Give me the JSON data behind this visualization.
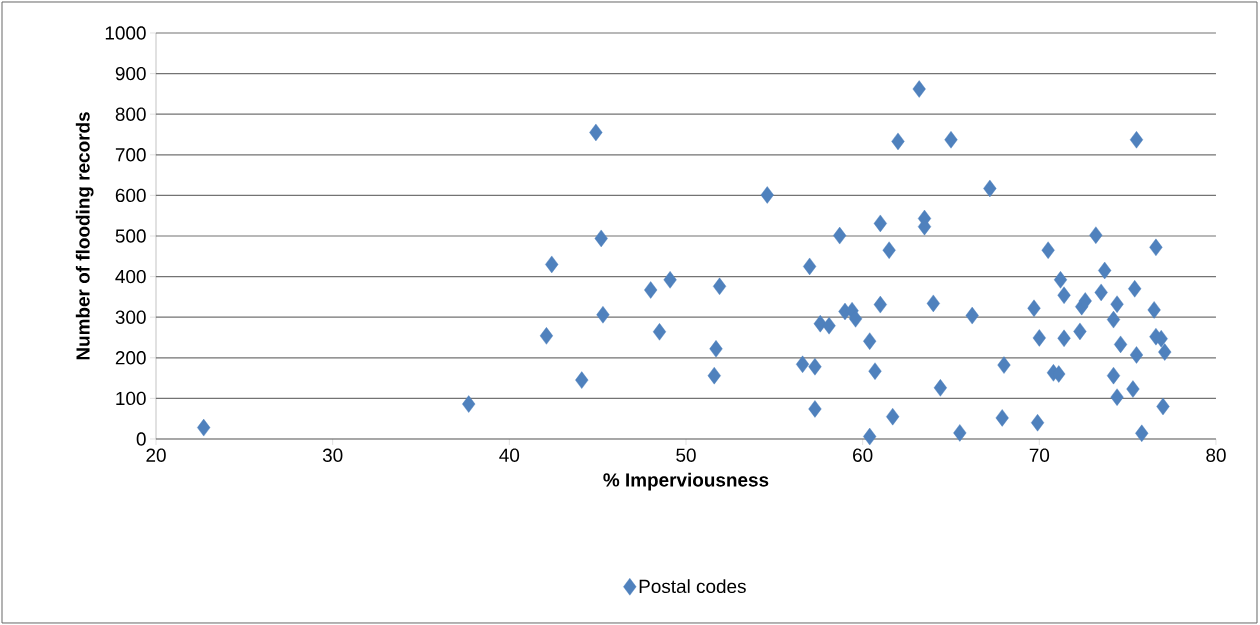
{
  "chart_data": {
    "type": "scatter",
    "xlabel": "% Imperviousness",
    "ylabel": "Number of flooding records",
    "xlim": [
      20,
      80
    ],
    "ylim": [
      0,
      1000
    ],
    "xticks": [
      20,
      30,
      40,
      50,
      60,
      70,
      80
    ],
    "yticks": [
      0,
      100,
      200,
      300,
      400,
      500,
      600,
      700,
      800,
      900,
      1000
    ],
    "grid": "y",
    "legend": "bottom",
    "marker": "diamond",
    "series": [
      {
        "name": "Postal codes",
        "color": "#4f81bd",
        "x": [
          22.7,
          37.7,
          42.1,
          42.4,
          44.1,
          44.9,
          45.2,
          45.3,
          48.0,
          48.5,
          49.1,
          51.6,
          51.7,
          51.9,
          54.6,
          56.6,
          57.0,
          57.3,
          57.3,
          57.6,
          58.1,
          58.7,
          59.0,
          59.4,
          59.6,
          60.4,
          60.4,
          60.7,
          61.0,
          61.0,
          61.5,
          61.7,
          62.0,
          63.2,
          63.5,
          63.5,
          64.0,
          64.4,
          65.0,
          65.5,
          66.2,
          67.2,
          67.9,
          68.0,
          69.7,
          69.9,
          70.0,
          70.5,
          70.8,
          71.1,
          71.2,
          71.4,
          71.4,
          72.3,
          72.4,
          72.6,
          73.2,
          73.5,
          73.7,
          74.2,
          74.2,
          74.4,
          74.4,
          74.6,
          75.3,
          75.4,
          75.5,
          75.5,
          75.8,
          76.5,
          76.6,
          76.6,
          76.9,
          77.0,
          77.1
        ],
        "values": [
          28,
          86,
          254,
          430,
          145,
          755,
          494,
          306,
          367,
          264,
          392,
          156,
          222,
          376,
          601,
          184,
          425,
          178,
          74,
          284,
          279,
          501,
          314,
          316,
          296,
          241,
          6,
          167,
          331,
          531,
          465,
          55,
          733,
          862,
          543,
          523,
          334,
          126,
          737,
          15,
          304,
          617,
          52,
          182,
          322,
          40,
          249,
          465,
          163,
          160,
          392,
          354,
          248,
          265,
          326,
          340,
          502,
          361,
          415,
          294,
          156,
          332,
          103,
          233,
          123,
          370,
          207,
          737,
          14,
          318,
          472,
          252,
          247,
          80,
          214
        ]
      }
    ]
  }
}
